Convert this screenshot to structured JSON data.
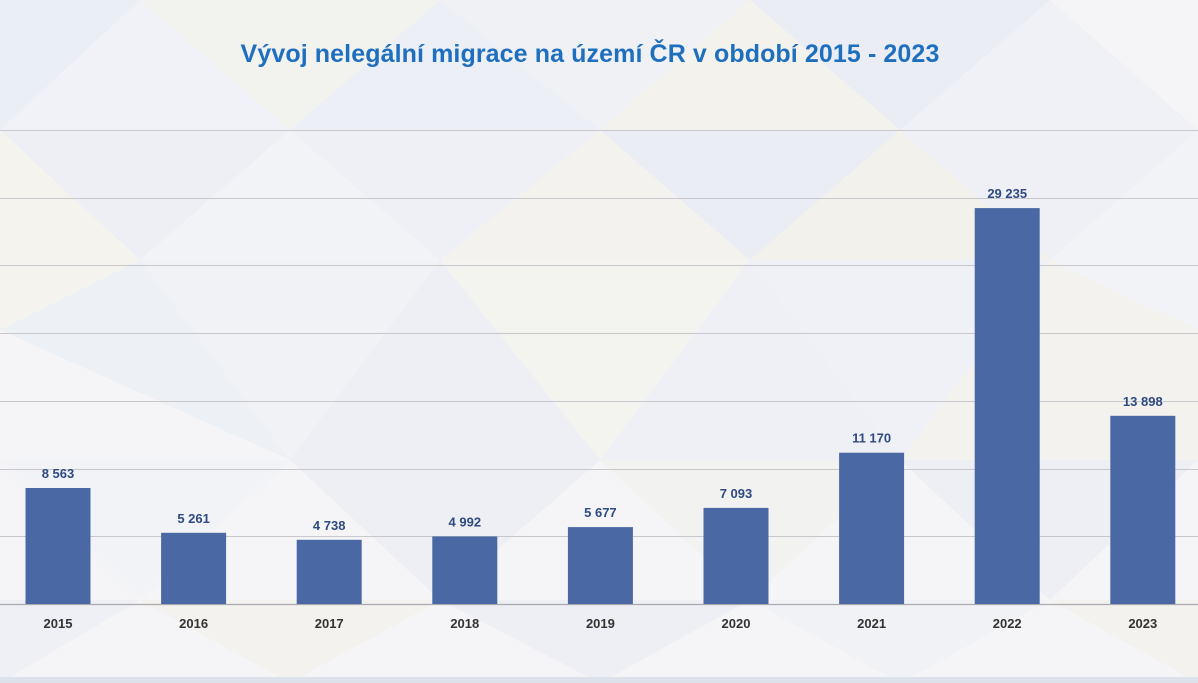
{
  "chart_data": {
    "type": "bar",
    "title": "Vývoj nelegální migrace na území ČR v období 2015 - 2023",
    "xlabel": "",
    "ylabel": "",
    "categories": [
      "2015",
      "2016",
      "2017",
      "2018",
      "2019",
      "2020",
      "2021",
      "2022",
      "2023"
    ],
    "values": [
      8563,
      5261,
      4738,
      4992,
      5677,
      7093,
      11170,
      29235,
      13898
    ],
    "value_labels": [
      "8 563",
      "5 261",
      "4 738",
      "4 992",
      "5 677",
      "7 093",
      "11 170",
      "29 235",
      "13 898"
    ],
    "ylim": [
      0,
      35000
    ],
    "grid": true,
    "legend": "none",
    "colors": {
      "bar": "#4a69a4",
      "title": "#1f6fbf",
      "data_label": "#2f4a80"
    }
  }
}
